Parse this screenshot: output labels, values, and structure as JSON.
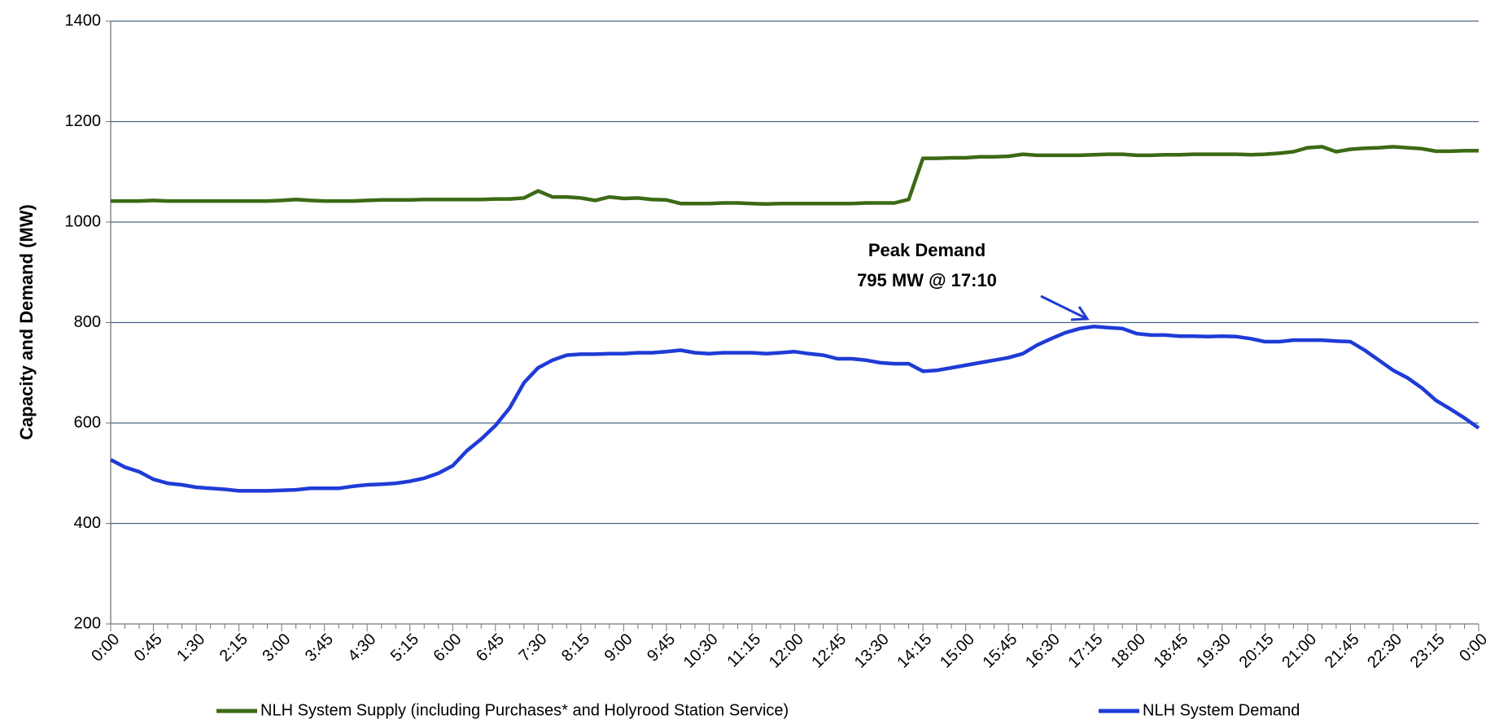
{
  "chart_data": {
    "type": "line",
    "y_label": "Capacity and Demand (MW)",
    "categories": [
      "0:00",
      null,
      null,
      "0:45",
      null,
      null,
      "1:30",
      null,
      null,
      "2:15",
      null,
      null,
      "3:00",
      null,
      null,
      "3:45",
      null,
      null,
      "4:30",
      null,
      null,
      "5:15",
      null,
      null,
      "6:00",
      null,
      null,
      "6:45",
      null,
      null,
      "7:30",
      null,
      null,
      "8:15",
      null,
      null,
      "9:00",
      null,
      null,
      "9:45",
      null,
      null,
      "10:30",
      null,
      null,
      "11:15",
      null,
      null,
      "12:00",
      null,
      null,
      "12:45",
      null,
      null,
      "13:30",
      null,
      null,
      "14:15",
      null,
      null,
      "15:00",
      null,
      null,
      "15:45",
      null,
      null,
      "16:30",
      null,
      null,
      "17:15",
      null,
      null,
      "18:00",
      null,
      null,
      "18:45",
      null,
      null,
      "19:30",
      null,
      null,
      "20:15",
      null,
      null,
      "21:00",
      null,
      null,
      "21:45",
      null,
      null,
      "22:30",
      null,
      null,
      "23:15",
      null,
      null,
      "0:00"
    ],
    "series": [
      {
        "name": "NLH System Supply (including Purchases* and Holyrood Station Service)",
        "color": "#3b6a14",
        "values": [
          1042,
          1042,
          1042,
          1043,
          1042,
          1042,
          1042,
          1042,
          1042,
          1042,
          1042,
          1042,
          1043,
          1045,
          1043,
          1042,
          1042,
          1042,
          1043,
          1044,
          1044,
          1044,
          1045,
          1045,
          1045,
          1045,
          1045,
          1046,
          1046,
          1048,
          1062,
          1050,
          1050,
          1048,
          1043,
          1050,
          1047,
          1048,
          1045,
          1044,
          1037,
          1037,
          1037,
          1038,
          1038,
          1037,
          1036,
          1037,
          1037,
          1037,
          1037,
          1037,
          1037,
          1038,
          1038,
          1038,
          1045,
          1127,
          1127,
          1128,
          1128,
          1130,
          1130,
          1131,
          1135,
          1133,
          1133,
          1133,
          1133,
          1134,
          1135,
          1135,
          1133,
          1133,
          1134,
          1134,
          1135,
          1135,
          1135,
          1135,
          1134,
          1135,
          1137,
          1140,
          1148,
          1150,
          1140,
          1145,
          1147,
          1148,
          1150,
          1148,
          1146,
          1141,
          1141,
          1142,
          1142
        ]
      },
      {
        "name": "NLH System Demand",
        "color": "#1f3bd6",
        "values": [
          527,
          512,
          503,
          488,
          480,
          477,
          472,
          470,
          468,
          465,
          465,
          465,
          466,
          467,
          470,
          470,
          470,
          474,
          477,
          478,
          480,
          484,
          490,
          500,
          515,
          545,
          568,
          595,
          630,
          680,
          710,
          725,
          735,
          737,
          737,
          738,
          738,
          740,
          740,
          742,
          745,
          740,
          738,
          740,
          740,
          740,
          738,
          740,
          742,
          738,
          735,
          728,
          728,
          725,
          720,
          718,
          718,
          703,
          705,
          710,
          715,
          720,
          725,
          730,
          738,
          755,
          768,
          780,
          788,
          792,
          790,
          788,
          778,
          775,
          775,
          773,
          773,
          772,
          773,
          772,
          768,
          762,
          762,
          765,
          765,
          765,
          763,
          762,
          745,
          725,
          705,
          690,
          670,
          645,
          628,
          610,
          590
        ]
      }
    ],
    "ylim": [
      200,
      1400
    ],
    "yticks": [
      200,
      400,
      600,
      800,
      1000,
      1200,
      1400
    ],
    "grid": true,
    "legend": "bottom",
    "annotation": [
      "Peak Demand",
      "795 MW @ 17:10"
    ]
  }
}
